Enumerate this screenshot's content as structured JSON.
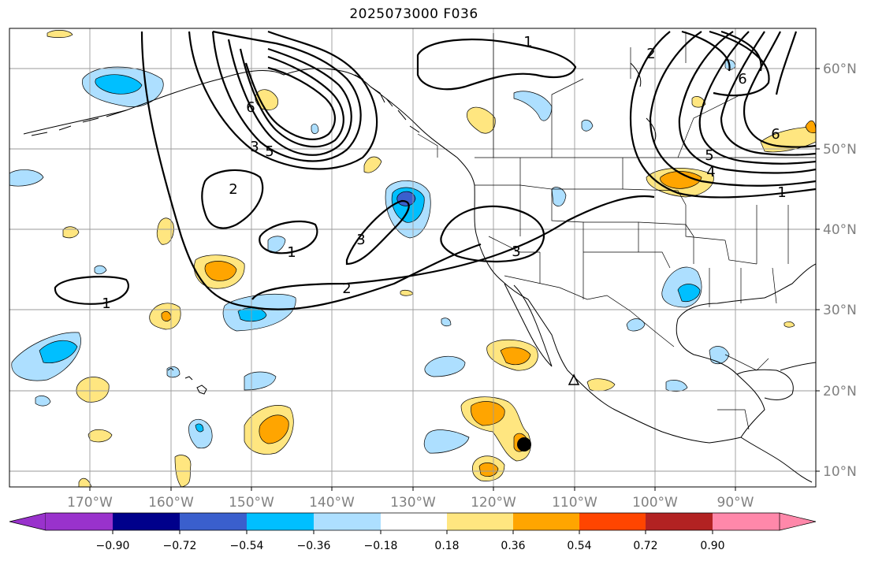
{
  "title": "2025073000 F036",
  "lon_labels": [
    "170°W",
    "160°W",
    "150°W",
    "140°W",
    "130°W",
    "120°W",
    "110°W",
    "100°W",
    "90°W"
  ],
  "lat_labels": [
    "60°N",
    "50°N",
    "40°N",
    "30°N",
    "20°N",
    "10°N"
  ],
  "colorbar": {
    "ticks": [
      "−0.90",
      "−0.72",
      "−0.54",
      "−0.36",
      "−0.18",
      "0.18",
      "0.36",
      "0.54",
      "0.72",
      "0.90"
    ],
    "colors": [
      "#9932CC",
      "#00008B",
      "#3A5FCD",
      "#00BFFF",
      "#ADDFFF",
      "#FFFFFF",
      "#FFE680",
      "#FFA500",
      "#FF4500",
      "#B22222",
      "#FF88AA"
    ]
  },
  "contour_labels": [
    {
      "text": "1"
    },
    {
      "text": "6"
    },
    {
      "text": "3"
    },
    {
      "text": "5"
    },
    {
      "text": "2"
    },
    {
      "text": "1"
    },
    {
      "text": "3"
    },
    {
      "text": "2"
    },
    {
      "text": "3"
    },
    {
      "text": "1"
    },
    {
      "text": "2"
    },
    {
      "text": "6"
    },
    {
      "text": "6"
    },
    {
      "text": "5"
    },
    {
      "text": "4"
    },
    {
      "text": "1"
    }
  ]
}
